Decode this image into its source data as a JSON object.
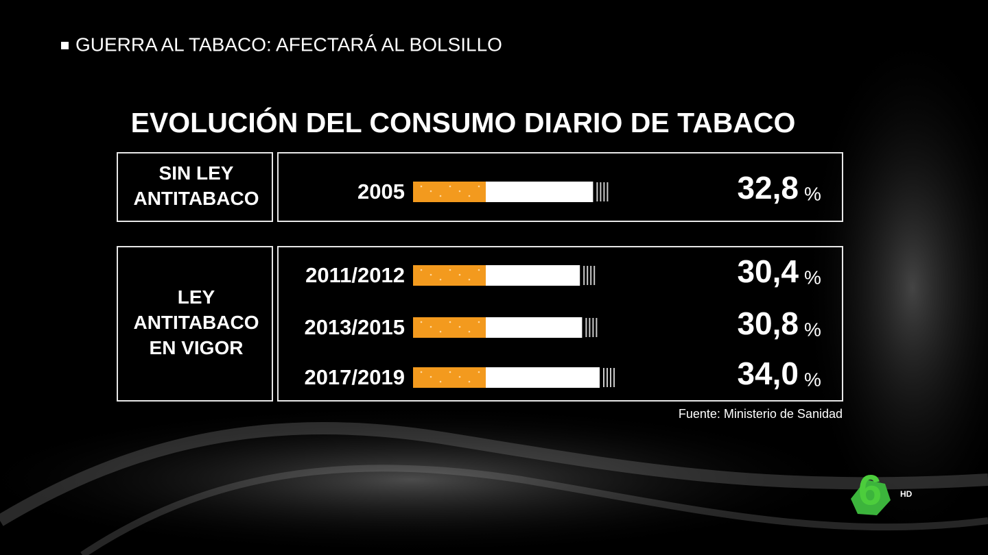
{
  "header": "GUERRA AL TABACO: AFECTARÁ AL BOLSILLO",
  "chart_data": {
    "type": "bar",
    "title": "EVOLUCIÓN DEL CONSUMO DIARIO DE TABACO",
    "color": "#f39a1e",
    "groups": [
      {
        "label": [
          "SIN LEY",
          "ANTITABACO"
        ],
        "categories": [
          "2005"
        ],
        "values": [
          32.8
        ],
        "value_labels": [
          "32,8"
        ]
      },
      {
        "label": [
          "LEY",
          "ANTITABACO",
          "EN VIGOR"
        ],
        "categories": [
          "2011/2012",
          "2013/2015",
          "2017/2019"
        ],
        "values": [
          30.4,
          30.8,
          34.0
        ],
        "value_labels": [
          "30,4",
          "30,8",
          "34,0"
        ]
      }
    ],
    "value_suffix": "%",
    "source": "Fuente: Ministerio de Sanidad"
  },
  "logo": {
    "number": "6",
    "badge": "HD"
  }
}
